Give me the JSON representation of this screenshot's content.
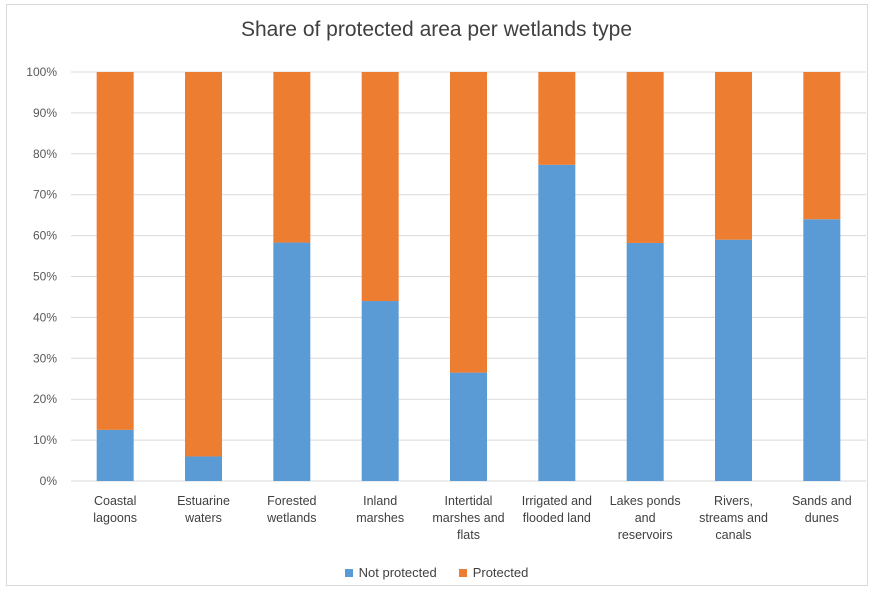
{
  "chart_data": {
    "type": "bar",
    "stacked": true,
    "title": "Share of protected area per wetlands type",
    "categories": [
      "Coastal lagoons",
      "Estuarine waters",
      "Forested wetlands",
      "Inland marshes",
      "Intertidal marshes and flats",
      "Irrigated and flooded land",
      "Lakes ponds and reservoirs",
      "Rivers, streams and canals",
      "Sands and dunes"
    ],
    "category_lines": [
      [
        "Coastal",
        "lagoons"
      ],
      [
        "Estuarine",
        "waters"
      ],
      [
        "Forested",
        "wetlands"
      ],
      [
        "Inland",
        "marshes"
      ],
      [
        "Intertidal",
        "marshes and",
        "flats"
      ],
      [
        "Irrigated and",
        "flooded land"
      ],
      [
        "Lakes ponds",
        "and",
        "reservoirs"
      ],
      [
        "Rivers,",
        "streams and",
        "canals"
      ],
      [
        "Sands and",
        "dunes"
      ]
    ],
    "series": [
      {
        "name": "Not protected",
        "color": "#5b9bd5",
        "values": [
          12.5,
          6,
          58.3,
          44,
          26.5,
          77.3,
          58.2,
          59,
          64
        ]
      },
      {
        "name": "Protected",
        "color": "#ed7d31",
        "values": [
          87.5,
          94,
          41.7,
          56,
          73.5,
          22.7,
          41.8,
          41,
          36
        ]
      }
    ],
    "ylim": [
      0,
      100
    ],
    "yticks": [
      "0%",
      "10%",
      "20%",
      "30%",
      "40%",
      "50%",
      "60%",
      "70%",
      "80%",
      "90%",
      "100%"
    ],
    "grid": true,
    "legend_position": "bottom"
  }
}
